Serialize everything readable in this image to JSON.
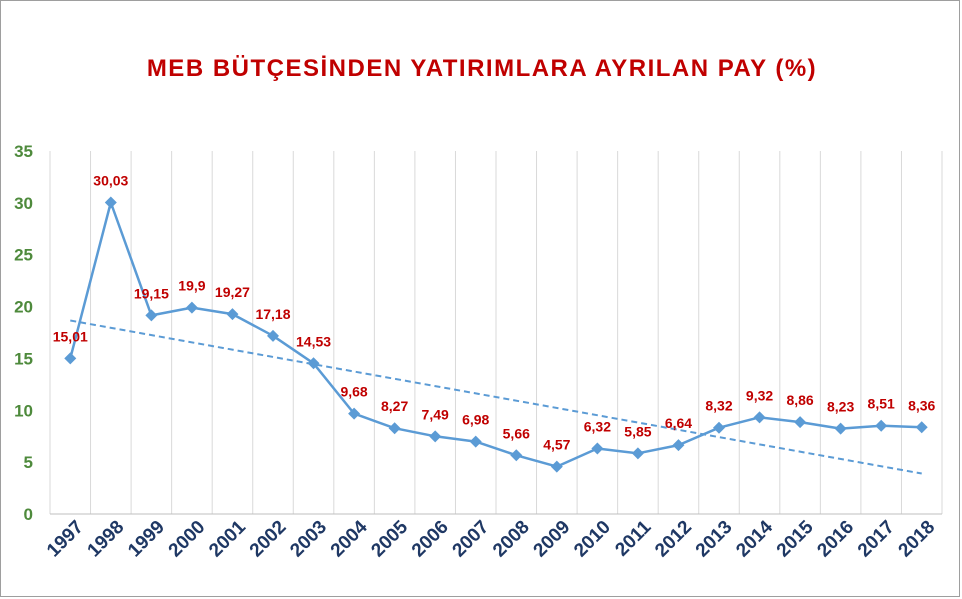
{
  "chart_data": {
    "type": "line",
    "title": "MEB BÜTÇESİNDEN YATIRIMLARA AYRILAN PAY (%)",
    "xlabel": "",
    "ylabel": "",
    "ylim": [
      0,
      35
    ],
    "y_ticks": [
      "0",
      "5",
      "10",
      "15",
      "20",
      "25",
      "30",
      "35"
    ],
    "categories": [
      "1997",
      "1998",
      "1999",
      "2000",
      "2001",
      "2002",
      "2003",
      "2004",
      "2005",
      "2006",
      "2007",
      "2008",
      "2009",
      "2010",
      "2011",
      "2012",
      "2013",
      "2014",
      "2015",
      "2016",
      "2017",
      "2018"
    ],
    "series": [
      {
        "values": [
          15.01,
          30.03,
          19.15,
          19.9,
          19.27,
          17.18,
          14.53,
          9.68,
          8.27,
          7.49,
          6.98,
          5.66,
          4.57,
          6.32,
          5.85,
          6.64,
          8.32,
          9.32,
          8.86,
          8.23,
          8.51,
          8.36
        ],
        "labels": [
          "15,01",
          "30,03",
          "19,15",
          "19,9",
          "19,27",
          "17,18",
          "14,53",
          "9,68",
          "8,27",
          "7,49",
          "6,98",
          "5,66",
          "4,57",
          "6,32",
          "5,85",
          "6,64",
          "8,32",
          "9,32",
          "8,86",
          "8,23",
          "8,51",
          "8,36"
        ],
        "color": "#5b9bd5",
        "marker": "diamond"
      }
    ],
    "trendline": {
      "type": "linear",
      "style": "dashed",
      "color": "#5b9bd5"
    },
    "grid": {
      "vertical": true,
      "horizontal": false
    },
    "legend": "none",
    "colors": {
      "title": "#c00000",
      "data_labels": "#c00000",
      "y_ticks": "#4e8a3c",
      "x_ticks": "#1f3864",
      "grid": "#d9d9d9"
    }
  }
}
